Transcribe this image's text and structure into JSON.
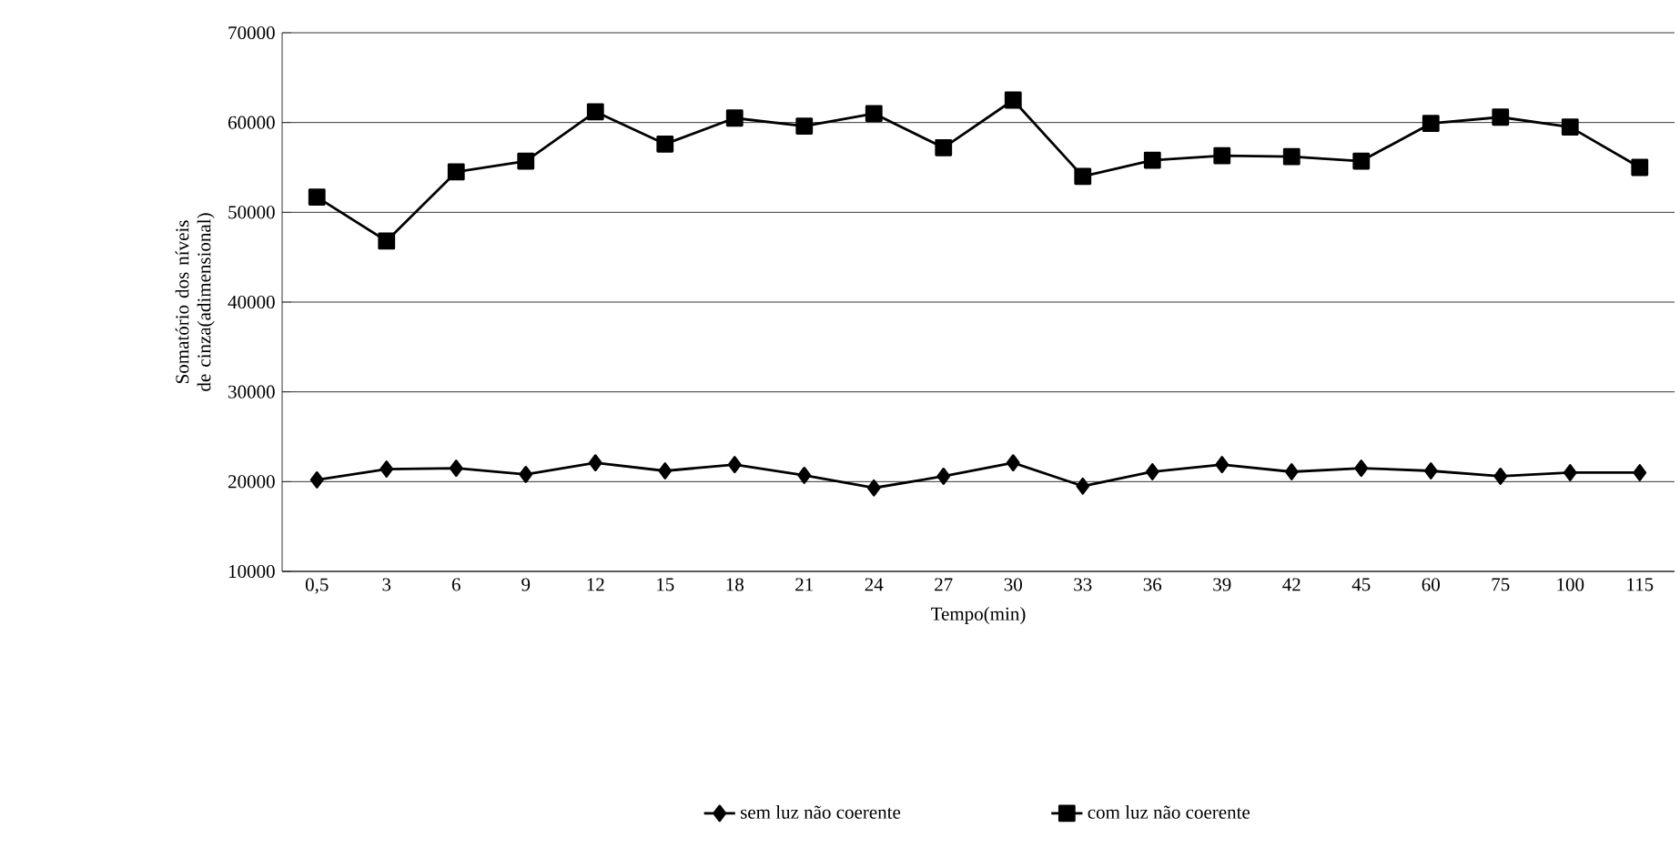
{
  "chart_data": {
    "type": "line",
    "xlabel": "Tempo(min)",
    "ylabel": "Somatório dos níveis de cinza(adimensional)",
    "categories": [
      "0,5",
      "3",
      "6",
      "9",
      "12",
      "15",
      "18",
      "21",
      "24",
      "27",
      "30",
      "33",
      "36",
      "39",
      "42",
      "45",
      "60",
      "75",
      "100",
      "115"
    ],
    "series": [
      {
        "name": "sem luz não coerente",
        "color": "#000000",
        "marker": "diamond",
        "values": [
          20200,
          21400,
          21500,
          20800,
          22100,
          21200,
          21900,
          20700,
          19300,
          20600,
          22100,
          19500,
          21100,
          21900,
          21100,
          21500,
          21200,
          20600,
          21000,
          21000
        ]
      },
      {
        "name": "com luz não coerente",
        "color": "#000000",
        "marker": "square",
        "values": [
          51700,
          46800,
          54500,
          55700,
          61200,
          57600,
          60500,
          59600,
          61000,
          57200,
          62500,
          54000,
          55800,
          56300,
          56200,
          55700,
          59900,
          60600,
          59500,
          55000
        ]
      }
    ],
    "ylim": [
      10000,
      70000
    ],
    "yticks": [
      10000,
      20000,
      30000,
      40000,
      50000,
      60000,
      70000
    ],
    "grid": "y",
    "legend": "bottom",
    "line_style": "solid"
  }
}
